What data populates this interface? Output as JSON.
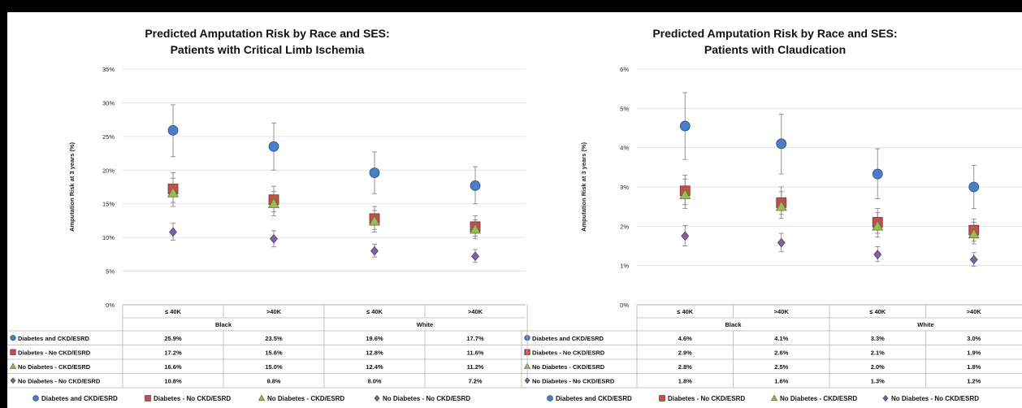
{
  "chart_data": [
    {
      "type": "scatter",
      "title": "Predicted Amputation Risk by Race and SES:",
      "subtitle": "Patients with Critical Limb Ischemia",
      "ylabel": "Amputation Risk at 3 years (%)",
      "ylim": [
        0,
        35
      ],
      "yticks": [
        "0%",
        "5%",
        "10%",
        "15%",
        "20%",
        "25%",
        "30%",
        "35%"
      ],
      "categories": [
        "≤ 40K",
        ">40K",
        "≤ 40K",
        ">40K"
      ],
      "groups": [
        "Black",
        "White"
      ],
      "error_bars": "shown",
      "series": [
        {
          "name": "Diabetes and CKD/ESRD",
          "marker": "circle",
          "color": "#4a7fc6",
          "values": [
            25.9,
            23.5,
            19.6,
            17.7
          ],
          "labels": [
            "25.9%",
            "23.5%",
            "19.6%",
            "17.7%"
          ],
          "lower": [
            22.0,
            20.0,
            16.5,
            15.0
          ],
          "upper": [
            29.7,
            27.0,
            22.7,
            20.5
          ]
        },
        {
          "name": "Diabetes - No CKD/ESRD",
          "marker": "square",
          "color": "#c0504d",
          "values": [
            17.2,
            15.6,
            12.8,
            11.6
          ],
          "labels": [
            "17.2%",
            "15.6%",
            "12.8%",
            "11.6%"
          ],
          "lower": [
            15.2,
            13.8,
            11.2,
            10.2
          ],
          "upper": [
            19.6,
            17.6,
            14.6,
            13.2
          ]
        },
        {
          "name": "No Diabetes - CKD/ESRD",
          "marker": "triangle",
          "color": "#9bbb59",
          "values": [
            16.6,
            15.0,
            12.4,
            11.2
          ],
          "labels": [
            "16.6%",
            "15.0%",
            "12.4%",
            "11.2%"
          ],
          "lower": [
            14.6,
            13.2,
            10.8,
            9.8
          ],
          "upper": [
            18.8,
            16.8,
            14.0,
            12.6
          ]
        },
        {
          "name": "No Diabetes - No CKD/ESRD",
          "marker": "diamond",
          "color": "#8064a2",
          "values": [
            10.8,
            9.8,
            8.0,
            7.2
          ],
          "labels": [
            "10.8%",
            "9.8%",
            "8.0%",
            "7.2%"
          ],
          "lower": [
            9.6,
            8.6,
            7.1,
            6.3
          ],
          "upper": [
            12.1,
            11.0,
            9.0,
            8.2
          ]
        }
      ],
      "legend_position": "bottom"
    },
    {
      "type": "scatter",
      "title": "Predicted Amputation Risk by Race and SES:",
      "subtitle": "Patients with Claudication",
      "ylabel": "Amputation Risk at 3 years (%)",
      "ylim": [
        0,
        6
      ],
      "yticks": [
        "0%",
        "1%",
        "2%",
        "3%",
        "4%",
        "5%",
        "6%"
      ],
      "categories": [
        "≤ 40K",
        ">40K",
        "≤ 40K",
        ">40K"
      ],
      "groups": [
        "Black",
        "White"
      ],
      "error_bars": "shown",
      "series": [
        {
          "name": "Diabetes and CKD/ESRD",
          "marker": "circle",
          "color": "#4a7fc6",
          "values": [
            4.55,
            4.1,
            3.33,
            3.0
          ],
          "labels": [
            "4.6%",
            "4.1%",
            "3.3%",
            "3.0%"
          ],
          "lower": [
            3.7,
            3.33,
            2.7,
            2.45
          ],
          "upper": [
            5.4,
            4.85,
            3.97,
            3.55
          ]
        },
        {
          "name": "Diabetes - No CKD/ESRD",
          "marker": "square",
          "color": "#c0504d",
          "values": [
            2.9,
            2.6,
            2.1,
            1.9
          ],
          "labels": [
            "2.9%",
            "2.6%",
            "2.1%",
            "1.9%"
          ],
          "lower": [
            2.55,
            2.3,
            1.82,
            1.62
          ],
          "upper": [
            3.3,
            3.0,
            2.45,
            2.18
          ]
        },
        {
          "name": "No Diabetes - CKD/ESRD",
          "marker": "triangle",
          "color": "#9bbb59",
          "values": [
            2.8,
            2.5,
            2.0,
            1.8
          ],
          "labels": [
            "2.8%",
            "2.5%",
            "2.0%",
            "1.8%"
          ],
          "lower": [
            2.45,
            2.2,
            1.72,
            1.55
          ],
          "upper": [
            3.2,
            2.88,
            2.35,
            2.1
          ]
        },
        {
          "name": "No Diabetes - No CKD/ESRD",
          "marker": "diamond",
          "color": "#8064a2",
          "values": [
            1.75,
            1.58,
            1.28,
            1.15
          ],
          "labels": [
            "1.8%",
            "1.6%",
            "1.3%",
            "1.2%"
          ],
          "lower": [
            1.5,
            1.35,
            1.1,
            0.98
          ],
          "upper": [
            2.02,
            1.82,
            1.48,
            1.33
          ]
        }
      ],
      "legend_position": "bottom"
    }
  ]
}
